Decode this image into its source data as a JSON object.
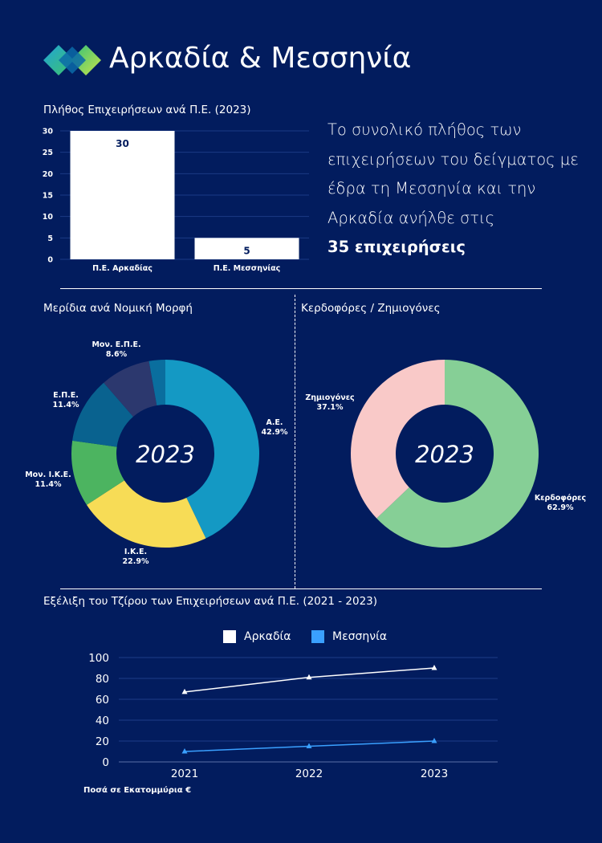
{
  "header": {
    "title": "Αρκαδία & Μεσσηνία",
    "logo_name": "diamond-logo"
  },
  "intro": {
    "text": "Το συνολικό πλήθος των επιχειρήσεων του δείγματος με έδρα τη Μεσσηνία και την Αρκαδία ανήλθε στις",
    "bold": "35 επιχειρήσεις"
  },
  "colors": {
    "background": "#021c5e",
    "white": "#ffffff",
    "messinia_line": "#3aa0ff"
  },
  "chart_data": [
    {
      "type": "bar",
      "title": "Πλήθος Επιχειρήσεων ανά Π.Ε. (2023)",
      "categories": [
        "Π.Ε. Αρκαδίας",
        "Π.Ε. Μεσσηνίας"
      ],
      "values": [
        30,
        5
      ],
      "ylim": [
        0,
        30
      ],
      "yticks": [
        "0",
        "5",
        "10",
        "15",
        "20",
        "25",
        "30"
      ],
      "data_labels": [
        "30",
        "5"
      ],
      "grid": true
    },
    {
      "type": "pie",
      "title": "Μερίδια ανά Νομική Μορφή",
      "center_label": "2023",
      "slices": [
        {
          "name": "Α.Ε.",
          "value": 42.9,
          "label": "42.9%",
          "color": "#1499c4"
        },
        {
          "name": "Ι.Κ.Ε.",
          "value": 22.9,
          "label": "22.9%",
          "color": "#f7dc56"
        },
        {
          "name": "Μον. Ι.Κ.Ε.",
          "value": 11.4,
          "label": "11.4%",
          "color": "#4cb460"
        },
        {
          "name": "Ε.Π.Ε.",
          "value": 11.4,
          "label": "11.4%",
          "color": "#09628f"
        },
        {
          "name": "Μον. Ε.Π.Ε.",
          "value": 8.6,
          "label": "8.6%",
          "color": "#2c386e"
        },
        {
          "name": "",
          "value": 2.8,
          "label": "",
          "color": "#0a6e9e"
        }
      ]
    },
    {
      "type": "pie",
      "title": "Κερδοφόρες / Ζημιογόνες",
      "center_label": "2023",
      "slices": [
        {
          "name": "Κερδοφόρες",
          "value": 62.9,
          "label": "62.9%",
          "color": "#86cf96"
        },
        {
          "name": "Ζημιογόνες",
          "value": 37.1,
          "label": "37.1%",
          "color": "#f9c9c8"
        }
      ]
    },
    {
      "type": "line",
      "title": "Εξέλιξη του Τζίρου των Επιχειρήσεων ανά Π.Ε. (2021 - 2023)",
      "x": [
        "2021",
        "2022",
        "2023"
      ],
      "series": [
        {
          "name": "Αρκαδία",
          "values": [
            67,
            81,
            90
          ],
          "color": "#ffffff"
        },
        {
          "name": "Μεσσηνία",
          "values": [
            10,
            15,
            20
          ],
          "color": "#3aa0ff"
        }
      ],
      "ylim": [
        0,
        100
      ],
      "yticks": [
        "0",
        "20",
        "40",
        "60",
        "80",
        "100"
      ],
      "legend": "top-center",
      "grid": true,
      "note": "Ποσά σε Εκατομμύρια €"
    }
  ]
}
